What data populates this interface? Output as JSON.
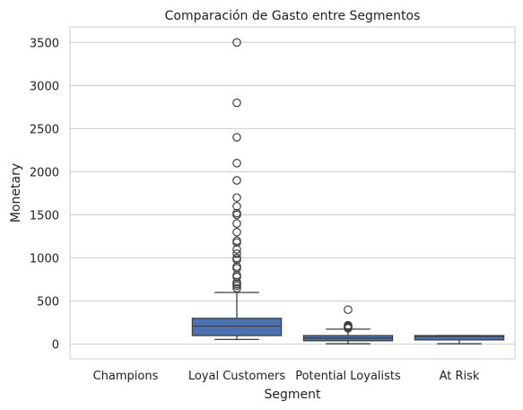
{
  "chart_data": {
    "type": "box",
    "title": "Comparación de Gasto entre Segmentos",
    "xlabel": "Segment",
    "ylabel": "Monetary",
    "categories": [
      "Champions",
      "Loyal Customers",
      "Potential Loyalists",
      "At Risk"
    ],
    "yticks": [
      0,
      500,
      1000,
      1500,
      2000,
      2500,
      3000,
      3500
    ],
    "ylim": [
      -170,
      3680
    ],
    "grid": true,
    "box_color": "#4c72b0",
    "boxes": [
      null,
      {
        "q1": 100,
        "median": 210,
        "q3": 300,
        "whisker_low": 55,
        "whisker_high": 600,
        "outliers": [
          650,
          680,
          700,
          720,
          780,
          800,
          880,
          900,
          980,
          1000,
          1050,
          1100,
          1180,
          1200,
          1300,
          1400,
          1500,
          1520,
          1600,
          1700,
          1900,
          2100,
          2400,
          2800,
          3500
        ]
      },
      {
        "q1": 40,
        "median": 70,
        "q3": 100,
        "whisker_low": 5,
        "whisker_high": 175,
        "outliers": [
          185,
          195,
          200,
          210,
          220,
          400
        ]
      },
      {
        "q1": 50,
        "median": 90,
        "q3": 100,
        "whisker_low": 5,
        "whisker_high": 100,
        "outliers": []
      }
    ]
  }
}
